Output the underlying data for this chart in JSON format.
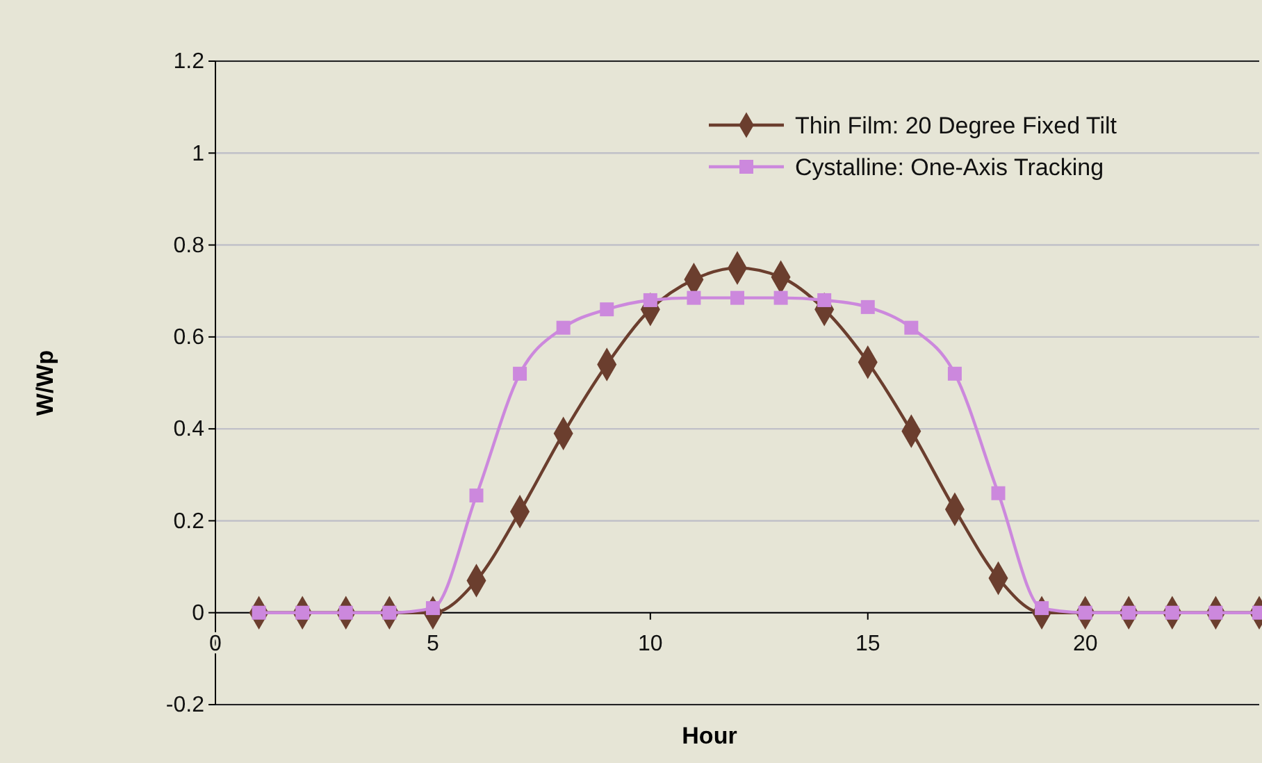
{
  "chart_data": {
    "type": "line",
    "xlabel": "Hour",
    "ylabel": "W/Wp",
    "x": [
      1,
      2,
      3,
      4,
      5,
      6,
      7,
      8,
      9,
      10,
      11,
      12,
      13,
      14,
      15,
      16,
      17,
      18,
      19,
      20,
      21,
      22,
      23,
      24
    ],
    "series": [
      {
        "name": "Thin Film: 20 Degree Fixed Tilt",
        "color": "#6b3e2e",
        "marker": "diamond",
        "values": [
          0,
          0,
          0,
          0,
          0,
          0.07,
          0.22,
          0.39,
          0.54,
          0.66,
          0.725,
          0.75,
          0.73,
          0.66,
          0.545,
          0.395,
          0.225,
          0.075,
          0,
          0,
          0,
          0,
          0,
          0
        ]
      },
      {
        "name": "Cystalline: One-Axis Tracking",
        "color": "#cc88dd",
        "marker": "square",
        "values": [
          0,
          0,
          0,
          0,
          0.01,
          0.255,
          0.52,
          0.62,
          0.66,
          0.68,
          0.685,
          0.685,
          0.685,
          0.68,
          0.665,
          0.62,
          0.52,
          0.26,
          0.01,
          0,
          0,
          0,
          0,
          0
        ]
      }
    ],
    "xlim": [
      0,
      24
    ],
    "xticks": [
      0,
      5,
      10,
      15,
      20
    ],
    "ylim": [
      -0.2,
      1.2
    ],
    "yticks": [
      -0.2,
      0,
      0.2,
      0.4,
      0.6,
      0.8,
      1,
      1.2
    ],
    "grid": "y",
    "legend": "top right",
    "line_style": "solid"
  }
}
